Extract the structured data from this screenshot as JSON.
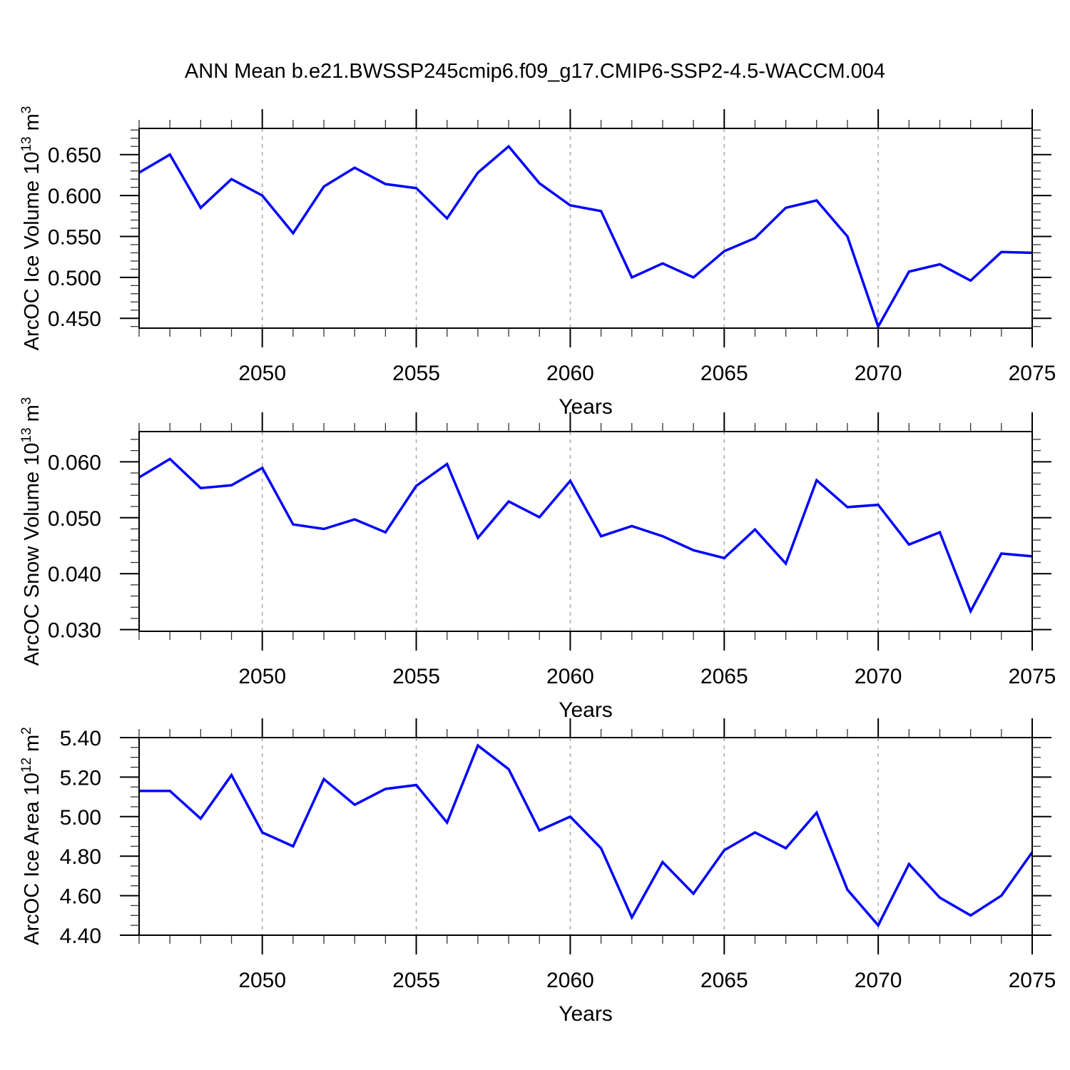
{
  "title": "ANN Mean b.e21.BWSSP245cmip6.f09_g17.CMIP6-SSP2-4.5-WACCM.004",
  "axis_color": "#000000",
  "chart_data": [
    {
      "type": "line",
      "title": "",
      "xlabel": "Years",
      "ylabel": "ArcOC Ice Volume 10^13 m^3",
      "ylabel_parts": {
        "prefix": "ArcOC Ice Volume 10",
        "sup1": "13",
        "mid": " m",
        "sup2": "3"
      },
      "line_color": "#0000ff",
      "grid_color": "#a6a6a6",
      "x": [
        2046,
        2047,
        2048,
        2049,
        2050,
        2051,
        2052,
        2053,
        2054,
        2055,
        2056,
        2057,
        2058,
        2059,
        2060,
        2061,
        2062,
        2063,
        2064,
        2065,
        2066,
        2067,
        2068,
        2069,
        2070,
        2071,
        2072,
        2073,
        2074,
        2075
      ],
      "values": [
        0.628,
        0.65,
        0.585,
        0.62,
        0.6,
        0.554,
        0.611,
        0.634,
        0.614,
        0.609,
        0.572,
        0.628,
        0.66,
        0.615,
        0.588,
        0.581,
        0.5,
        0.517,
        0.5,
        0.532,
        0.548,
        0.585,
        0.594,
        0.55,
        0.44,
        0.507,
        0.516,
        0.496,
        0.531,
        0.53
      ],
      "xlim": [
        2046,
        2075
      ],
      "ylim": [
        0.438,
        0.682
      ],
      "xticks": [
        2050,
        2055,
        2060,
        2065,
        2070,
        2075
      ],
      "xtick_labels": [
        "2050",
        "2055",
        "2060",
        "2065",
        "2070",
        "2075"
      ],
      "xminor_step": 1,
      "yticks": [
        0.45,
        0.5,
        0.55,
        0.6,
        0.65
      ],
      "ytick_labels": [
        "0.450",
        "0.500",
        "0.550",
        "0.600",
        "0.650"
      ],
      "yminor_step": 0.01,
      "grid_x": [
        2050,
        2055,
        2060,
        2065,
        2070
      ],
      "grid_on": true,
      "legend": "none"
    },
    {
      "type": "line",
      "title": "",
      "xlabel": "Years",
      "ylabel": "ArcOC Snow Volume 10^13 m^3",
      "ylabel_parts": {
        "prefix": "ArcOC Snow Volume 10",
        "sup1": "13",
        "mid": " m",
        "sup2": "3"
      },
      "line_color": "#0000ff",
      "grid_color": "#a6a6a6",
      "x": [
        2046,
        2047,
        2048,
        2049,
        2050,
        2051,
        2052,
        2053,
        2054,
        2055,
        2056,
        2057,
        2058,
        2059,
        2060,
        2061,
        2062,
        2063,
        2064,
        2065,
        2066,
        2067,
        2068,
        2069,
        2070,
        2071,
        2072,
        2073,
        2074,
        2075
      ],
      "values": [
        0.0572,
        0.0605,
        0.0553,
        0.0558,
        0.0589,
        0.0488,
        0.048,
        0.0497,
        0.0474,
        0.0557,
        0.0596,
        0.0464,
        0.0529,
        0.0501,
        0.0566,
        0.0467,
        0.0485,
        0.0467,
        0.0442,
        0.0428,
        0.0479,
        0.0418,
        0.0567,
        0.0519,
        0.0523,
        0.0452,
        0.0474,
        0.0333,
        0.0436,
        0.0431
      ],
      "xlim": [
        2046,
        2075
      ],
      "ylim": [
        0.0297,
        0.0654
      ],
      "xticks": [
        2050,
        2055,
        2060,
        2065,
        2070,
        2075
      ],
      "xtick_labels": [
        "2050",
        "2055",
        "2060",
        "2065",
        "2070",
        "2075"
      ],
      "xminor_step": 1,
      "yticks": [
        0.03,
        0.04,
        0.05,
        0.06
      ],
      "ytick_labels": [
        "0.030",
        "0.040",
        "0.050",
        "0.060"
      ],
      "yminor_step": 0.002,
      "grid_x": [
        2050,
        2055,
        2060,
        2065,
        2070
      ],
      "grid_on": true,
      "legend": "none"
    },
    {
      "type": "line",
      "title": "",
      "xlabel": "Years",
      "ylabel": "ArcOC Ice Area 10^12 m^2",
      "ylabel_parts": {
        "prefix": "ArcOC Ice Area 10",
        "sup1": "12",
        "mid": " m",
        "sup2": "2"
      },
      "line_color": "#0000ff",
      "grid_color": "#a6a6a6",
      "x": [
        2046,
        2047,
        2048,
        2049,
        2050,
        2051,
        2052,
        2053,
        2054,
        2055,
        2056,
        2057,
        2058,
        2059,
        2060,
        2061,
        2062,
        2063,
        2064,
        2065,
        2066,
        2067,
        2068,
        2069,
        2070,
        2071,
        2072,
        2073,
        2074,
        2075
      ],
      "values": [
        5.13,
        5.13,
        4.99,
        5.21,
        4.92,
        4.85,
        5.19,
        5.06,
        5.14,
        5.16,
        4.97,
        5.36,
        5.24,
        4.93,
        5.0,
        4.84,
        4.49,
        4.77,
        4.61,
        4.83,
        4.92,
        4.84,
        5.02,
        4.63,
        4.45,
        4.76,
        4.59,
        4.5,
        4.6,
        4.82
      ],
      "xlim": [
        2046,
        2075
      ],
      "ylim": [
        4.4,
        5.4
      ],
      "xticks": [
        2050,
        2055,
        2060,
        2065,
        2070,
        2075
      ],
      "xtick_labels": [
        "2050",
        "2055",
        "2060",
        "2065",
        "2070",
        "2075"
      ],
      "xminor_step": 1,
      "yticks": [
        4.4,
        4.6,
        4.8,
        5.0,
        5.2,
        5.4
      ],
      "ytick_labels": [
        "4.40",
        "4.60",
        "4.80",
        "5.00",
        "5.20",
        "5.40"
      ],
      "yminor_step": 0.05,
      "grid_x": [
        2050,
        2055,
        2060,
        2065,
        2070
      ],
      "grid_on": true,
      "legend": "none"
    }
  ]
}
